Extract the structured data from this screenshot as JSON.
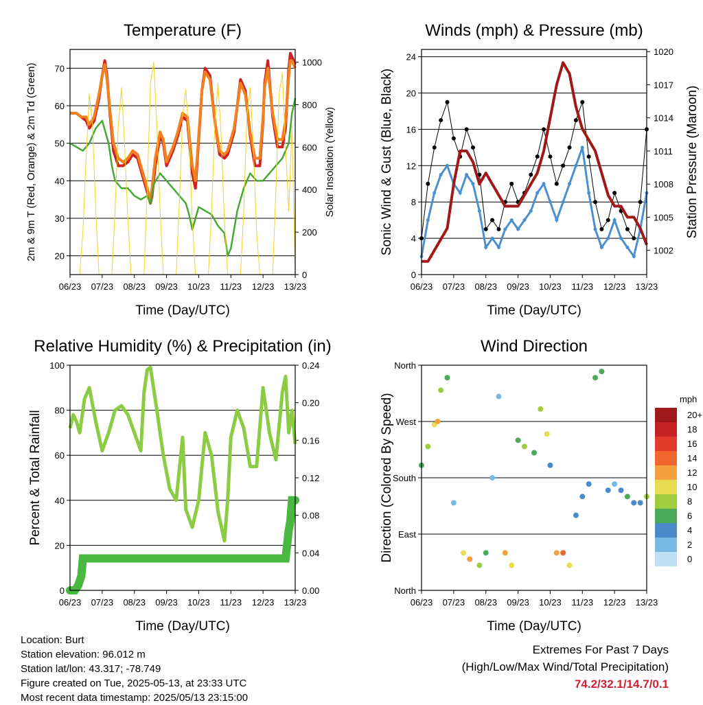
{
  "chart_data": [
    {
      "type": "line",
      "title": "Temperature (F)",
      "xlabel": "Time (Day/UTC)",
      "ylabel": "2m & 9m T (Red, Orange) & 2m Td (Green)",
      "ylabel_right": "Solar Insolation (Yellow)",
      "x_ticks": [
        "06/23",
        "07/23",
        "08/23",
        "09/23",
        "10/23",
        "11/23",
        "12/23",
        "13/23"
      ],
      "y_ticks": [
        "20",
        "30",
        "40",
        "50",
        "60",
        "70"
      ],
      "y_right_ticks": [
        "0",
        "200",
        "400",
        "600",
        "800",
        "1000"
      ],
      "ylim": [
        15,
        75
      ],
      "ylim_right": [
        0,
        1060
      ],
      "xlim": [
        6,
        13
      ],
      "grid": "horizontal",
      "series": [
        {
          "color": "#d02020",
          "x": [
            6.0,
            6.2,
            6.35,
            6.5,
            6.6,
            6.75,
            6.9,
            7.0,
            7.08,
            7.15,
            7.25,
            7.35,
            7.5,
            7.65,
            7.8,
            7.95,
            8.1,
            8.2,
            8.3,
            8.4,
            8.5,
            8.55,
            8.65,
            8.8,
            8.9,
            9.0,
            9.05,
            9.2,
            9.35,
            9.5,
            9.65,
            9.8,
            9.9,
            10.0,
            10.1,
            10.2,
            10.35,
            10.5,
            10.65,
            10.8,
            10.9,
            11.0,
            11.1,
            11.2,
            11.3,
            11.45,
            11.6,
            11.75,
            11.9,
            12.0,
            12.05,
            12.15,
            12.3,
            12.45,
            12.6,
            12.7,
            12.8,
            12.85,
            12.9,
            13.0
          ],
          "y": [
            58,
            58,
            57,
            56,
            54,
            56,
            62,
            68,
            72,
            68,
            57,
            48,
            44,
            44,
            45,
            47,
            46,
            43,
            40,
            37,
            34,
            36,
            44,
            52,
            50,
            44,
            45,
            48,
            52,
            57,
            56,
            42,
            38,
            51,
            64,
            70,
            68,
            56,
            47,
            46,
            47,
            50,
            53,
            60,
            67,
            64,
            52,
            44,
            44,
            56,
            66,
            72,
            57,
            49,
            49,
            54,
            70,
            74,
            73,
            71
          ]
        },
        {
          "color": "#f08020",
          "x": [
            6.0,
            6.2,
            6.35,
            6.5,
            6.6,
            6.75,
            6.9,
            7.0,
            7.08,
            7.15,
            7.25,
            7.35,
            7.5,
            7.65,
            7.8,
            7.95,
            8.1,
            8.2,
            8.3,
            8.4,
            8.5,
            8.55,
            8.65,
            8.8,
            8.9,
            9.0,
            9.05,
            9.2,
            9.35,
            9.5,
            9.65,
            9.8,
            9.9,
            10.0,
            10.1,
            10.2,
            10.35,
            10.5,
            10.65,
            10.8,
            10.9,
            11.0,
            11.1,
            11.2,
            11.3,
            11.45,
            11.6,
            11.75,
            11.9,
            12.0,
            12.05,
            12.15,
            12.3,
            12.45,
            12.6,
            12.7,
            12.8,
            12.85,
            12.9,
            13.0
          ],
          "y": [
            58,
            58,
            57,
            57,
            55,
            57,
            63,
            68,
            71,
            67,
            58,
            50,
            46,
            45,
            46,
            48,
            47,
            44,
            41,
            38,
            35,
            38,
            46,
            53,
            51,
            45,
            46,
            49,
            53,
            58,
            57,
            44,
            40,
            52,
            64,
            69,
            67,
            56,
            48,
            47,
            48,
            51,
            54,
            60,
            66,
            63,
            53,
            46,
            46,
            57,
            65,
            70,
            58,
            51,
            51,
            56,
            68,
            72,
            72,
            70
          ]
        },
        {
          "color": "#44aa33",
          "x": [
            6.0,
            6.2,
            6.4,
            6.6,
            6.8,
            7.0,
            7.1,
            7.2,
            7.3,
            7.4,
            7.6,
            7.8,
            8.0,
            8.2,
            8.4,
            8.5,
            8.6,
            8.8,
            9.0,
            9.2,
            9.4,
            9.6,
            9.7,
            9.8,
            9.9,
            10.0,
            10.2,
            10.4,
            10.6,
            10.8,
            10.9,
            11.0,
            11.1,
            11.2,
            11.4,
            11.6,
            11.8,
            12.0,
            12.2,
            12.4,
            12.6,
            12.8,
            12.9,
            13.0
          ],
          "y": [
            50,
            49,
            48,
            50,
            54,
            56,
            53,
            50,
            44,
            40,
            38,
            38,
            36,
            35,
            36,
            34,
            39,
            42,
            40,
            38,
            36,
            34,
            31,
            27,
            30,
            33,
            32,
            31,
            28,
            26,
            20,
            22,
            27,
            32,
            38,
            42,
            40,
            40,
            42,
            44,
            46,
            50,
            58,
            62
          ]
        },
        {
          "color": "#f5d020",
          "axis": "right",
          "x": [
            6.0,
            6.3,
            6.4,
            6.5,
            6.6,
            6.7,
            6.8,
            6.9,
            7.3,
            7.4,
            7.5,
            7.6,
            7.7,
            7.8,
            7.9,
            8.3,
            8.4,
            8.5,
            8.6,
            8.7,
            8.8,
            8.9,
            9.3,
            9.4,
            9.5,
            9.6,
            9.7,
            9.8,
            9.9,
            10.3,
            10.4,
            10.5,
            10.6,
            10.7,
            10.8,
            10.9,
            11.3,
            11.4,
            11.5,
            11.6,
            11.7,
            11.8,
            11.9,
            12.3,
            12.4,
            12.5,
            12.6,
            12.7,
            12.8,
            12.9,
            13.0
          ],
          "y": [
            0,
            0,
            200,
            550,
            850,
            700,
            300,
            0,
            0,
            300,
            700,
            880,
            600,
            250,
            0,
            0,
            400,
            900,
            1000,
            700,
            300,
            0,
            0,
            350,
            750,
            870,
            650,
            250,
            0,
            0,
            300,
            700,
            900,
            650,
            250,
            0,
            0,
            300,
            750,
            880,
            600,
            200,
            0,
            0,
            400,
            850,
            950,
            600,
            300,
            700,
            0
          ]
        }
      ]
    },
    {
      "type": "scatter",
      "title": "Winds (mph) & Pressure (mb)",
      "xlabel": "Time (Day/UTC)",
      "ylabel": "Sonic Wind & Gust (Blue, Black)",
      "ylabel_right": "Station Pressure (Maroon)",
      "x_ticks": [
        "06/23",
        "07/23",
        "08/23",
        "09/23",
        "10/23",
        "11/23",
        "12/23",
        "13/23"
      ],
      "y_ticks": [
        "0",
        "4",
        "8",
        "12",
        "16",
        "20",
        "24"
      ],
      "y_right_ticks": [
        "1002",
        "1005",
        "1008",
        "1011",
        "1014",
        "1017",
        "1020"
      ],
      "ylim": [
        0,
        24.8
      ],
      "ylim_right": [
        999.8,
        1020.2
      ],
      "xlim": [
        6,
        13
      ],
      "grid": "horizontal",
      "series": [
        {
          "color": "#4a90d0",
          "x": [
            6.0,
            6.2,
            6.4,
            6.6,
            6.8,
            7.0,
            7.2,
            7.4,
            7.6,
            7.8,
            8.0,
            8.2,
            8.4,
            8.6,
            8.8,
            9.0,
            9.2,
            9.4,
            9.6,
            9.8,
            10.0,
            10.2,
            10.4,
            10.6,
            10.8,
            11.0,
            11.2,
            11.4,
            11.6,
            11.8,
            12.0,
            12.2,
            12.4,
            12.6,
            12.8,
            13.0
          ],
          "y": [
            2,
            6,
            9,
            11,
            12,
            10,
            9,
            11,
            10,
            7,
            3,
            4,
            3,
            5,
            6,
            5,
            6,
            7,
            9,
            10,
            8,
            6,
            8,
            10,
            12,
            14,
            9,
            5,
            3,
            4,
            6,
            4,
            3,
            2,
            5,
            9
          ]
        },
        {
          "color": "#000000",
          "x": [
            6.0,
            6.2,
            6.4,
            6.6,
            6.8,
            7.0,
            7.2,
            7.4,
            7.6,
            7.8,
            8.0,
            8.2,
            8.4,
            8.6,
            8.8,
            9.0,
            9.2,
            9.4,
            9.6,
            9.8,
            10.0,
            10.2,
            10.4,
            10.6,
            10.8,
            11.0,
            11.2,
            11.4,
            11.6,
            11.8,
            12.0,
            12.2,
            12.4,
            12.6,
            12.8,
            13.0
          ],
          "y": [
            4,
            10,
            14,
            17,
            19,
            15,
            13,
            16,
            14,
            11,
            5,
            6,
            5,
            8,
            10,
            8,
            9,
            11,
            13,
            16,
            13,
            10,
            12,
            14,
            17,
            19,
            13,
            8,
            5,
            6,
            9,
            7,
            5,
            4,
            8,
            16
          ]
        },
        {
          "color": "#a01818",
          "axis": "right",
          "x": [
            6.0,
            6.2,
            6.4,
            6.6,
            6.8,
            7.0,
            7.2,
            7.4,
            7.6,
            7.8,
            8.0,
            8.2,
            8.4,
            8.6,
            8.8,
            9.0,
            9.2,
            9.4,
            9.6,
            9.8,
            10.0,
            10.2,
            10.4,
            10.6,
            10.8,
            11.0,
            11.2,
            11.4,
            11.6,
            11.8,
            12.0,
            12.2,
            12.4,
            12.6,
            12.8,
            13.0
          ],
          "y": [
            1001,
            1001,
            1002,
            1003,
            1004,
            1008,
            1011,
            1011,
            1010,
            1008,
            1009,
            1008,
            1007,
            1006,
            1006,
            1006,
            1007,
            1008,
            1009,
            1011,
            1014,
            1017,
            1019,
            1018,
            1015,
            1013,
            1012,
            1011,
            1009,
            1007,
            1006,
            1006,
            1005,
            1005,
            1004,
            1002.5
          ]
        }
      ]
    },
    {
      "type": "line",
      "title": "Relative Humidity (%) & Precipitation (in)",
      "xlabel": "Time (Day/UTC)",
      "ylabel": "Percent & Total Rainfall",
      "x_ticks": [
        "06/23",
        "07/23",
        "08/23",
        "09/23",
        "10/23",
        "11/23",
        "12/23",
        "13/23"
      ],
      "y_ticks": [
        "0",
        "20",
        "40",
        "60",
        "80",
        "100"
      ],
      "y_right_ticks": [
        "0.00",
        "0.04",
        "0.08",
        "0.12",
        "0.16",
        "0.20",
        "0.24"
      ],
      "ylim": [
        0,
        100
      ],
      "ylim_right": [
        0,
        0.24
      ],
      "xlim": [
        6,
        13
      ],
      "grid": "horizontal",
      "series": [
        {
          "color": "#8ccc44",
          "x": [
            6.0,
            6.1,
            6.2,
            6.3,
            6.45,
            6.6,
            6.8,
            7.0,
            7.2,
            7.4,
            7.6,
            7.8,
            8.0,
            8.2,
            8.3,
            8.4,
            8.5,
            8.7,
            8.9,
            9.1,
            9.3,
            9.5,
            9.6,
            9.8,
            10.0,
            10.2,
            10.4,
            10.6,
            10.8,
            10.9,
            11.0,
            11.2,
            11.4,
            11.6,
            11.8,
            12.0,
            12.2,
            12.4,
            12.6,
            12.7,
            12.8,
            12.9,
            13.0
          ],
          "y": [
            72,
            78,
            75,
            70,
            85,
            90,
            75,
            62,
            70,
            80,
            82,
            78,
            70,
            62,
            88,
            98,
            99,
            80,
            60,
            45,
            40,
            68,
            36,
            28,
            40,
            70,
            60,
            35,
            22,
            40,
            68,
            80,
            72,
            55,
            55,
            90,
            70,
            58,
            88,
            95,
            70,
            80,
            65
          ]
        },
        {
          "color": "#4ab840",
          "axis": "right",
          "x": [
            6.0,
            6.15,
            6.25,
            6.3,
            6.35,
            6.4,
            12.6,
            12.7,
            12.8,
            12.85,
            12.9,
            13.0
          ],
          "y": [
            0.0,
            0.0,
            0.005,
            0.01,
            0.015,
            0.034,
            0.034,
            0.034,
            0.064,
            0.074,
            0.096,
            0.096
          ]
        }
      ]
    },
    {
      "type": "scatter",
      "title": "Wind Direction",
      "xlabel": "Time (Day/UTC)",
      "ylabel": "Direction (Colored By Speed)",
      "x_ticks": [
        "06/23",
        "07/23",
        "08/23",
        "09/23",
        "10/23",
        "11/23",
        "12/23",
        "13/23"
      ],
      "y_ticks": [
        "North",
        "East",
        "South",
        "West",
        "North"
      ],
      "ylim": [
        0,
        360
      ],
      "xlim": [
        6,
        13
      ],
      "grid": "horizontal",
      "legend_title": "mph",
      "legend_labels": [
        "20+",
        "18",
        "16",
        "14",
        "12",
        "10",
        "8",
        "6",
        "4",
        "2",
        "0"
      ],
      "legend_colors": [
        "#9e1a1a",
        "#c42222",
        "#e03a2c",
        "#f0662f",
        "#f5a040",
        "#e8dc50",
        "#a0cc40",
        "#4aaa5a",
        "#4a8ac8",
        "#7ab8e4",
        "#bde0f5"
      ],
      "x": [
        6.0,
        6.2,
        6.4,
        6.5,
        6.6,
        6.8,
        7.0,
        7.3,
        7.5,
        7.8,
        8.0,
        8.2,
        8.4,
        8.6,
        8.8,
        9.0,
        9.2,
        9.5,
        9.7,
        9.9,
        10.0,
        10.2,
        10.4,
        10.6,
        10.8,
        11.0,
        11.2,
        11.4,
        11.6,
        11.8,
        12.0,
        12.2,
        12.4,
        12.6,
        12.8,
        13.0
      ],
      "y": [
        200,
        230,
        265,
        270,
        320,
        340,
        140,
        60,
        50,
        40,
        60,
        180,
        310,
        60,
        40,
        240,
        230,
        220,
        290,
        250,
        200,
        60,
        60,
        40,
        120,
        150,
        170,
        340,
        350,
        160,
        170,
        160,
        150,
        140,
        140,
        150
      ],
      "speed": [
        6,
        8,
        10,
        12,
        8,
        6,
        2,
        10,
        12,
        8,
        6,
        2,
        2,
        12,
        10,
        6,
        8,
        6,
        8,
        10,
        4,
        12,
        14,
        10,
        4,
        4,
        4,
        6,
        6,
        4,
        2,
        4,
        6,
        4,
        4,
        8
      ]
    }
  ],
  "info": {
    "location": "Location: Burt",
    "elevation": "Station elevation: 96.012 m",
    "latlon": "Station lat/lon: 43.317; -78.749",
    "created": "Figure created on Tue, 2025-05-13, at 23:33 UTC",
    "recent": "Most recent data timestamp: 2025/05/13 23:15:00"
  },
  "extremes": {
    "title": "Extremes For Past 7 Days",
    "subtitle": "(High/Low/Max Wind/Total Precipitation)",
    "values": "74.2/32.1/14.7/0.1"
  }
}
